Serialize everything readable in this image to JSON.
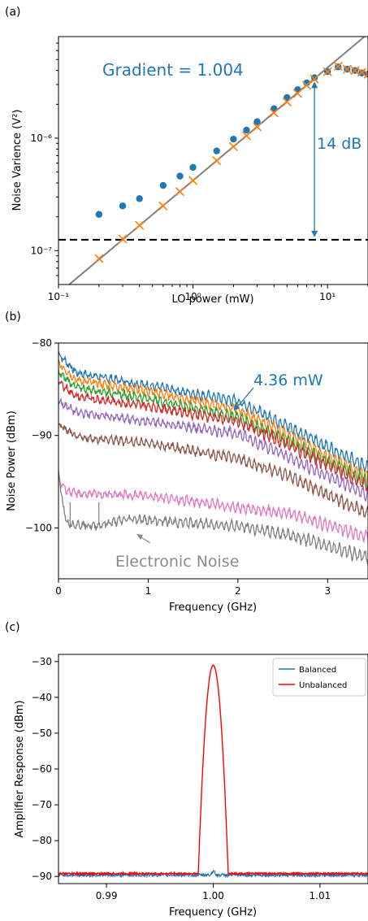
{
  "colors": {
    "blue": "#1f77b4",
    "orange": "#ff7f0e",
    "green": "#2ca02c",
    "red": "#d62728",
    "purple": "#9467bd",
    "brown": "#8c564b",
    "pink": "#e377c2",
    "gray": "#7f7f7f",
    "fit_line": "#808080",
    "unbalanced": "#ff0000"
  },
  "chart_data": [
    {
      "panel": "(a)",
      "type": "scatter",
      "xscale": "log",
      "yscale": "log",
      "xlabel": "LO power (mW)",
      "ylabel": "Noise Varience (V²)",
      "xlim": [
        0.1,
        20
      ],
      "ylim": [
        5e-08,
        8e-06
      ],
      "xticks": [
        "10⁻¹",
        "10⁰",
        "10¹"
      ],
      "yticks": [
        "10⁻⁷",
        "10⁻⁶"
      ],
      "series": [
        {
          "marker": "circle",
          "color": "blue",
          "x": [
            0.2,
            0.3,
            0.4,
            0.6,
            0.8,
            1.0,
            1.5,
            2.0,
            2.5,
            3.0,
            4.0,
            5.0,
            6.0,
            7.0,
            8.0,
            10,
            12,
            14,
            16,
            18,
            20
          ],
          "y": [
            2.1e-07,
            2.5e-07,
            2.9e-07,
            3.8e-07,
            4.6e-07,
            5.5e-07,
            7.7e-07,
            9.8e-07,
            1.18e-06,
            1.4e-06,
            1.83e-06,
            2.3e-06,
            2.7e-06,
            3.1e-06,
            3.45e-06,
            3.9e-06,
            4.3e-06,
            4.1e-06,
            4e-06,
            3.8e-06,
            3.7e-06
          ]
        },
        {
          "marker": "x",
          "color": "orange",
          "x": [
            0.2,
            0.3,
            0.4,
            0.6,
            0.8,
            1.0,
            1.5,
            2.0,
            2.5,
            3.0,
            4.0,
            5.0,
            6.0,
            7.0,
            8.0,
            10,
            12,
            14,
            16,
            18,
            20
          ],
          "y": [
            8.5e-08,
            1.27e-07,
            1.68e-07,
            2.5e-07,
            3.35e-07,
            4.2e-07,
            6.3e-07,
            8.4e-07,
            1.05e-06,
            1.26e-06,
            1.68e-06,
            2.1e-06,
            2.5e-06,
            2.95e-06,
            3.35e-06,
            3.9e-06,
            4.35e-06,
            4.1e-06,
            4e-06,
            3.85e-06,
            3.7e-06
          ]
        }
      ],
      "fit_line": {
        "slope": 1.004,
        "y_at_1mW": 4.2e-07
      },
      "electronic_noise_level": 1.25e-07,
      "annotations": {
        "gradient": "Gradient = 1.004",
        "clearance": "14 dB"
      }
    },
    {
      "panel": "(b)",
      "type": "line",
      "xlabel": "Frequency (GHz)",
      "ylabel": "Noise Power (dBm)",
      "xlim": [
        0,
        3.45
      ],
      "ylim": [
        -105.5,
        -80
      ],
      "xticks": [
        "0",
        "1",
        "2",
        "3"
      ],
      "yticks": [
        "−80",
        "−90",
        "−100"
      ],
      "series": [
        {
          "color": "blue",
          "points": [
            [
              0,
              -81.2
            ],
            [
              0.2,
              -83.2
            ],
            [
              1.0,
              -84.6
            ],
            [
              2.0,
              -86.3
            ],
            [
              2.6,
              -89.2
            ],
            [
              3.45,
              -93.5
            ]
          ]
        },
        {
          "color": "orange",
          "points": [
            [
              0,
              -82.2
            ],
            [
              0.2,
              -84.0
            ],
            [
              1.0,
              -85.2
            ],
            [
              2.0,
              -87.2
            ],
            [
              2.6,
              -90.2
            ],
            [
              3.45,
              -94.5
            ]
          ]
        },
        {
          "color": "green",
          "points": [
            [
              0,
              -83.2
            ],
            [
              0.2,
              -84.8
            ],
            [
              1.0,
              -86.0
            ],
            [
              2.0,
              -88.0
            ],
            [
              2.6,
              -90.8
            ],
            [
              3.45,
              -95.0
            ]
          ]
        },
        {
          "color": "red",
          "points": [
            [
              0,
              -84.2
            ],
            [
              0.2,
              -85.8
            ],
            [
              1.0,
              -86.8
            ],
            [
              2.0,
              -88.5
            ],
            [
              2.6,
              -91.2
            ],
            [
              3.45,
              -95.5
            ]
          ]
        },
        {
          "color": "purple",
          "points": [
            [
              0,
              -86.3
            ],
            [
              0.2,
              -87.5
            ],
            [
              1.0,
              -88.5
            ],
            [
              2.0,
              -89.8
            ],
            [
              2.6,
              -92.5
            ],
            [
              3.45,
              -96.5
            ]
          ]
        },
        {
          "color": "brown",
          "points": [
            [
              0,
              -88.8
            ],
            [
              0.2,
              -90.2
            ],
            [
              1.0,
              -90.8
            ],
            [
              2.0,
              -92.5
            ],
            [
              2.6,
              -94.5
            ],
            [
              3.45,
              -98.5
            ]
          ]
        },
        {
          "color": "pink",
          "points": [
            [
              0,
              -94.8
            ],
            [
              0.1,
              -96.0
            ],
            [
              0.2,
              -96.3
            ],
            [
              1.0,
              -96.5
            ],
            [
              2.0,
              -97.8
            ],
            [
              2.6,
              -98.5
            ],
            [
              3.45,
              -101.0
            ]
          ]
        },
        {
          "color": "gray",
          "points": [
            [
              0,
              -93.8
            ],
            [
              0.05,
              -97.5
            ],
            [
              0.1,
              -99.5
            ],
            [
              0.4,
              -99.8
            ],
            [
              0.8,
              -99.0
            ],
            [
              1.2,
              -99.3
            ],
            [
              2.0,
              -99.8
            ],
            [
              2.6,
              -100.8
            ],
            [
              3.45,
              -103.2
            ]
          ]
        }
      ],
      "annotations": {
        "power": "4.36 mW",
        "electronic": "Electronic Noise"
      }
    },
    {
      "panel": "(c)",
      "type": "line",
      "xlabel": "Frequency (GHz)",
      "ylabel": "Amplifier Response (dBm)",
      "xlim": [
        0.9855,
        1.0145
      ],
      "ylim": [
        -92,
        -28
      ],
      "xticks": [
        "0.99",
        "1.00",
        "1.01"
      ],
      "yticks": [
        "−30",
        "−40",
        "−50",
        "−60",
        "−70",
        "−80",
        "−90"
      ],
      "series": [
        {
          "name": "Balanced",
          "color": "blue",
          "baseline": -89.6,
          "peak": -88.4,
          "peak_x": 1.0
        },
        {
          "name": "Unbalanced",
          "color": "unbalanced",
          "baseline": -89.2,
          "peak": -31.0,
          "peak_x": 1.0,
          "half_width": 0.0014
        }
      ]
    }
  ]
}
